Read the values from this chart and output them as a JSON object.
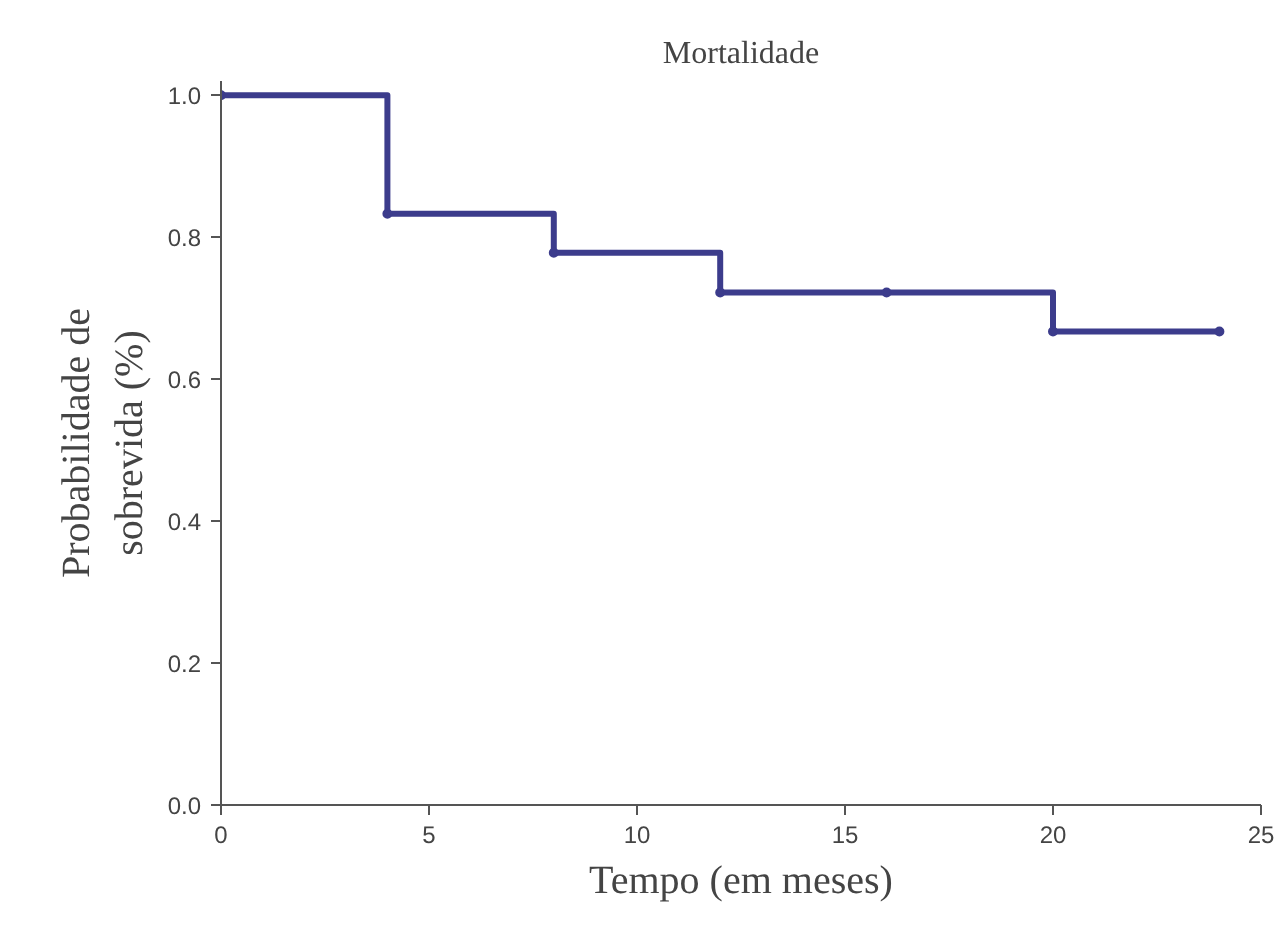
{
  "chart_data": {
    "type": "step",
    "title": "Mortalidade",
    "xlabel": "Tempo (em meses)",
    "ylabel": "Probabilidade de\nsobrevida (%)",
    "x": [
      0,
      4,
      8,
      12,
      16,
      20,
      24
    ],
    "series": [
      {
        "color": "#3c3c8c",
        "values": [
          1.0,
          0.833,
          0.778,
          0.722,
          0.722,
          0.667,
          0.667
        ]
      }
    ],
    "xlim": [
      0,
      25
    ],
    "xticks": [
      0,
      5,
      10,
      15,
      20,
      25
    ],
    "ylim": [
      0,
      1.02
    ],
    "yticks": [
      {
        "value": 0,
        "label": "0.0"
      },
      {
        "value": 0.2,
        "label": "0.2"
      },
      {
        "value": 0.4,
        "label": "0.4"
      },
      {
        "value": 0.6,
        "label": "0.6"
      },
      {
        "value": 0.8,
        "label": "0.8"
      },
      {
        "value": 1.0,
        "label": "1.0"
      }
    ],
    "grid": false,
    "marker": "circle",
    "line_style": "solid"
  }
}
